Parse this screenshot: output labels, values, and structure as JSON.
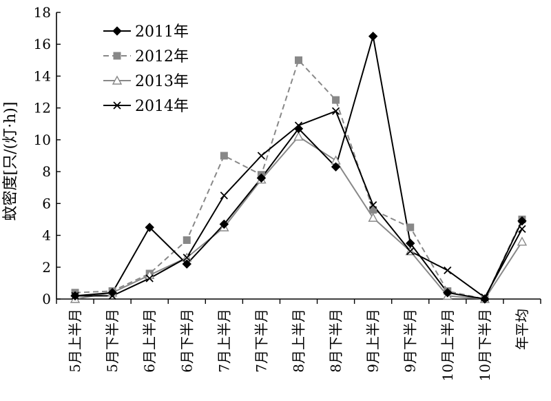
{
  "chart_data": {
    "type": "line",
    "ylabel": "蚊密度[只/(灯·h)]",
    "xlabel": "",
    "ylim": [
      0,
      18
    ],
    "yticks": [
      0,
      2,
      4,
      6,
      8,
      10,
      12,
      14,
      16,
      18
    ],
    "grid": false,
    "legend_position": "top-left",
    "categories": [
      "5月上半月",
      "5月下半月",
      "6月上半月",
      "6月下半月",
      "7月上半月",
      "7月下半月",
      "8月上半月",
      "8月下半月",
      "9月上半月",
      "9月下半月",
      "10月上半月",
      "10月下半月",
      "年平均"
    ],
    "series": [
      {
        "name": "2011年",
        "color": "#000000",
        "dash": "none",
        "marker": "diamond",
        "values": [
          0.2,
          0.4,
          4.5,
          2.2,
          4.7,
          7.6,
          10.7,
          8.3,
          16.5,
          3.5,
          0.4,
          0.0,
          4.9
        ]
      },
      {
        "name": "2012年",
        "color": "#888888",
        "dash": "8,5",
        "marker": "square",
        "values": [
          0.4,
          0.5,
          1.6,
          3.7,
          9.0,
          7.8,
          15.0,
          12.5,
          5.6,
          4.5,
          0.5,
          0.0,
          5.0
        ]
      },
      {
        "name": "2013年",
        "color": "#888888",
        "dash": "none",
        "marker": "triangle",
        "values": [
          0.0,
          0.4,
          1.5,
          2.6,
          4.5,
          7.5,
          10.2,
          8.7,
          5.1,
          3.0,
          0.2,
          0.0,
          3.6
        ]
      },
      {
        "name": "2014年",
        "color": "#000000",
        "dash": "none",
        "marker": "x",
        "values": [
          0.2,
          0.2,
          1.3,
          2.6,
          6.5,
          9.0,
          10.9,
          11.8,
          5.9,
          3.0,
          1.8,
          0.1,
          4.4
        ]
      }
    ]
  }
}
